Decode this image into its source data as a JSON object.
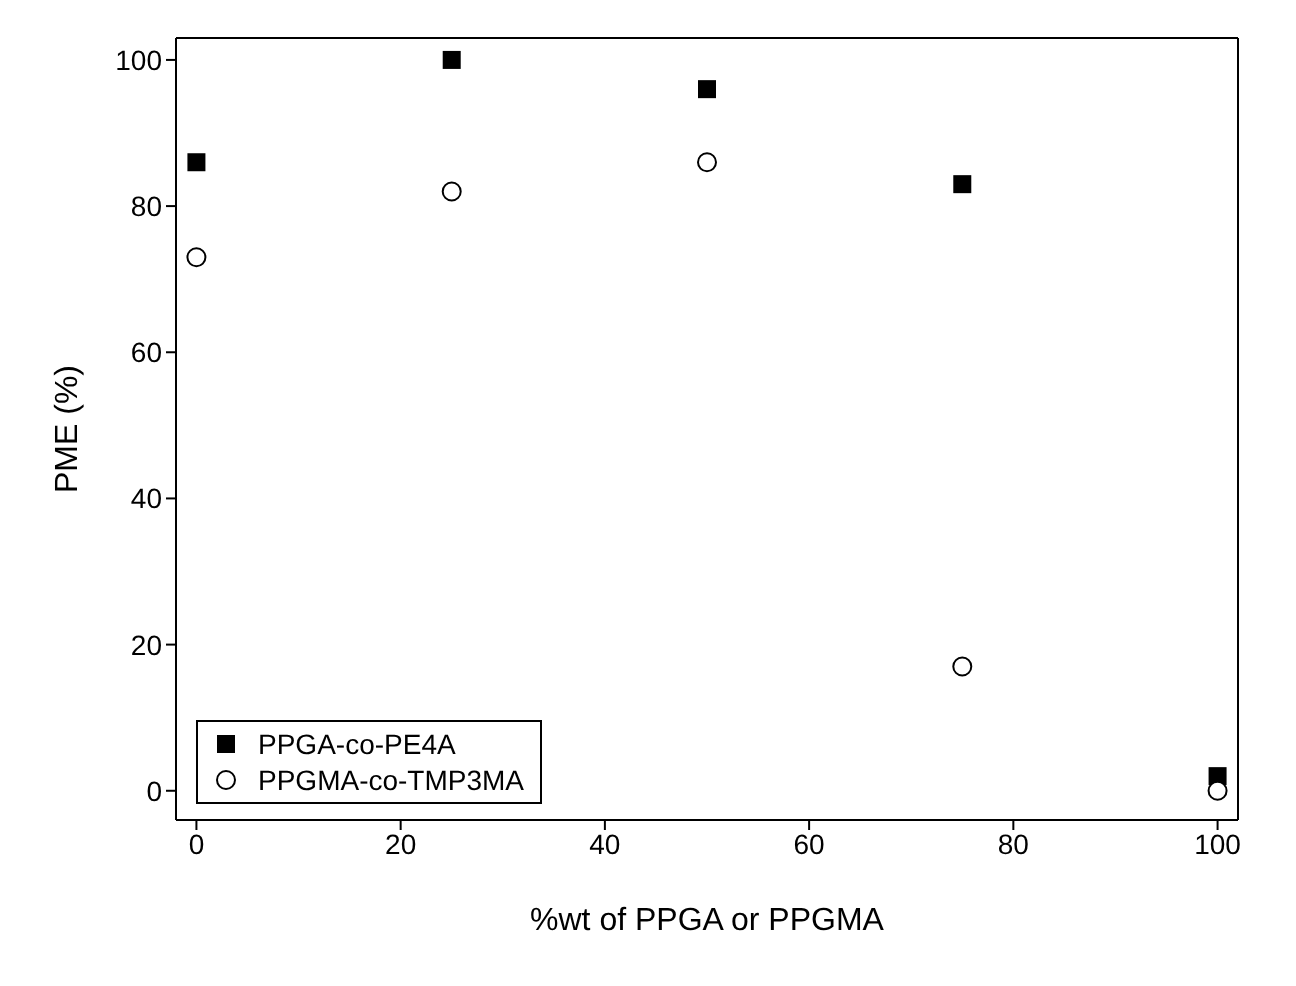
{
  "chart_data": {
    "type": "scatter",
    "xlabel": "%wt of PPGA or PPGMA",
    "ylabel": "PME (%)",
    "x": [
      0,
      25,
      50,
      75,
      100
    ],
    "series": [
      {
        "name": "PPGA-co-PE4A",
        "color": "#000000",
        "marker": "square",
        "values": [
          86,
          100,
          96,
          83,
          2
        ]
      },
      {
        "name": "PPGMA-co-TMP3MA",
        "color": "#000000",
        "marker": "circle",
        "values": [
          73,
          82,
          86,
          17,
          0
        ]
      }
    ],
    "xlim": [
      -2,
      102
    ],
    "xticks": [
      0,
      20,
      40,
      60,
      80,
      100
    ],
    "ylim": [
      -4,
      103
    ],
    "yticks": [
      0,
      20,
      40,
      60,
      80,
      100
    ],
    "grid": false,
    "legend": "bottom left"
  }
}
